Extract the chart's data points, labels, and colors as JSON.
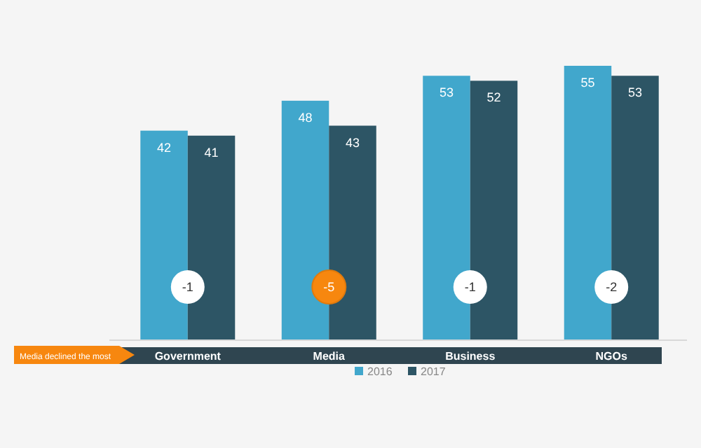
{
  "chart_data": {
    "type": "bar",
    "categories": [
      "Government",
      "Media",
      "Business",
      "NGOs"
    ],
    "series": [
      {
        "name": "2016",
        "color": "#41a7cc",
        "values": [
          42,
          48,
          53,
          55
        ]
      },
      {
        "name": "2017",
        "color": "#2d5565",
        "values": [
          41,
          43,
          52,
          53
        ]
      }
    ],
    "data_labels": true,
    "legend": "bottom",
    "annotations": [
      "-1",
      "-5",
      "-1",
      "-2",
      "Media declined the most"
    ]
  }
}
